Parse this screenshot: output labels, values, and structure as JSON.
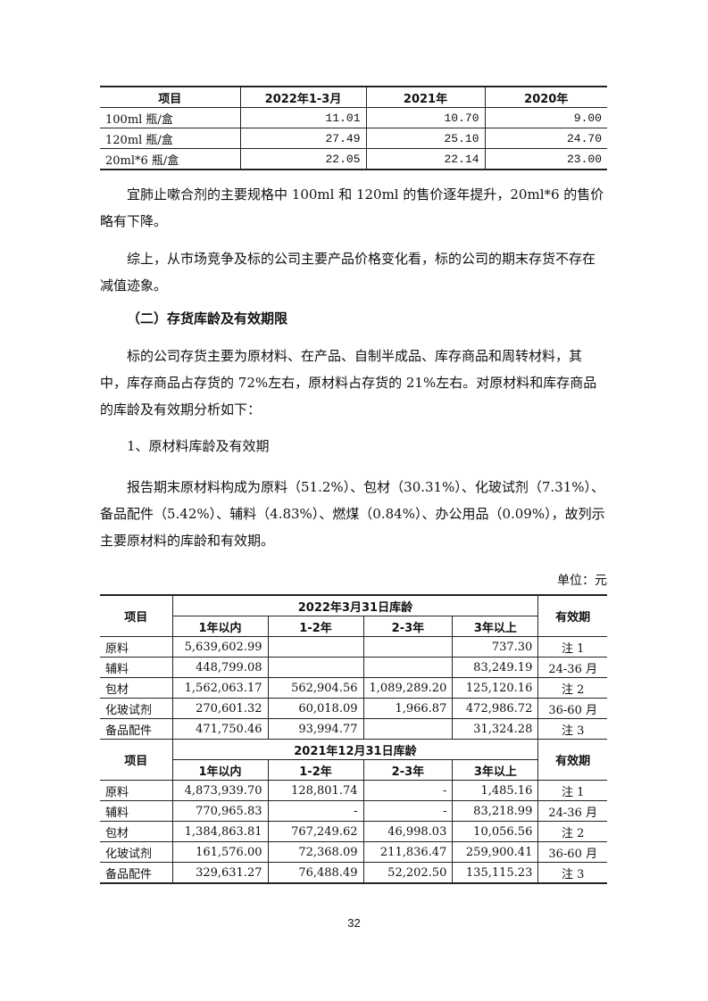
{
  "price_table": {
    "headers": [
      "项目",
      "2022年1-3月",
      "2021年",
      "2020年"
    ],
    "rows": [
      [
        "100ml 瓶/盒",
        "11.01",
        "10.70",
        "9.00"
      ],
      [
        "120ml 瓶/盒",
        "27.49",
        "25.10",
        "24.70"
      ],
      [
        "20ml*6 瓶/盒",
        "22.05",
        "22.14",
        "23.00"
      ]
    ]
  },
  "paragraphs": {
    "p1": "宜肺止嗽合剂的主要规格中 100ml 和 120ml 的售价逐年提升，20ml*6 的售价略有下降。",
    "p2": "综上，从市场竞争及标的公司主要产品价格变化看，标的公司的期末存货不存在减值迹象。",
    "heading": "（二）存货库龄及有效期限",
    "p3": "标的公司存货主要为原材料、在产品、自制半成品、库存商品和周转材料，其中，库存商品占存货的 72%左右，原材料占存货的 21%左右。对原材料和库存商品的库龄及有效期分析如下：",
    "sub": "1、原材料库龄及有效期",
    "p4": "报告期末原材料构成为原料（51.2%）、包材（30.31%）、化玻试剂（7.31%）、备品配件（5.42%）、辅料（4.83%）、燃煤（0.84%）、办公用品（0.09%），故列示主要原材料的库龄和有效期。",
    "unit": "单位：元"
  },
  "age_table": {
    "item": "项目",
    "validity": "有效期",
    "cols": [
      "1年以内",
      "1-2年",
      "2-3年",
      "3年以上"
    ],
    "sections": [
      {
        "title": "2022年3月31日库龄",
        "rows": [
          [
            "原料",
            "5,639,602.99",
            "",
            "",
            "737.30",
            "注 1"
          ],
          [
            "辅料",
            "448,799.08",
            "",
            "",
            "83,249.19",
            "24-36 月"
          ],
          [
            "包材",
            "1,562,063.17",
            "562,904.56",
            "1,089,289.20",
            "125,120.16",
            "注 2"
          ],
          [
            "化玻试剂",
            "270,601.32",
            "60,018.09",
            "1,966.87",
            "472,986.72",
            "36-60 月"
          ],
          [
            "备品配件",
            "471,750.46",
            "93,994.77",
            "",
            "31,324.28",
            "注 3"
          ]
        ]
      },
      {
        "title": "2021年12月31日库龄",
        "rows": [
          [
            "原料",
            "4,873,939.70",
            "128,801.74",
            "-",
            "1,485.16",
            "注 1"
          ],
          [
            "辅料",
            "770,965.83",
            "-",
            "-",
            "83,218.99",
            "24-36 月"
          ],
          [
            "包材",
            "1,384,863.81",
            "767,249.62",
            "46,998.03",
            "10,056.56",
            "注 2"
          ],
          [
            "化玻试剂",
            "161,576.00",
            "72,368.09",
            "211,836.47",
            "259,900.41",
            "36-60 月"
          ],
          [
            "备品配件",
            "329,631.27",
            "76,488.49",
            "52,202.50",
            "135,115.23",
            "注 3"
          ]
        ]
      }
    ]
  },
  "page_number": "32"
}
